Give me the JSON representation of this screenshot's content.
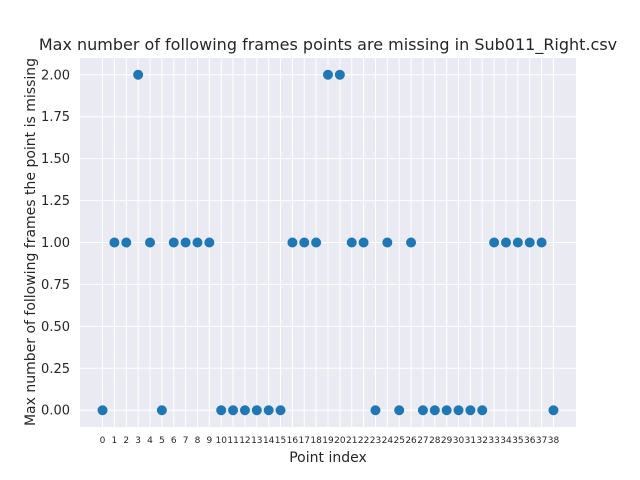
{
  "chart_data": {
    "type": "scatter",
    "title": "Max number of following frames points are missing in Sub011_Right.csv",
    "xlabel": "Point index",
    "ylabel": "Max number of following frames the point is missing",
    "x": [
      0,
      1,
      2,
      3,
      4,
      5,
      6,
      7,
      8,
      9,
      10,
      11,
      12,
      13,
      14,
      15,
      16,
      17,
      18,
      19,
      20,
      21,
      22,
      23,
      24,
      25,
      26,
      27,
      28,
      29,
      30,
      31,
      32,
      33,
      34,
      35,
      36,
      37,
      38
    ],
    "y": [
      0,
      1,
      1,
      2,
      1,
      0,
      1,
      1,
      1,
      1,
      0,
      0,
      0,
      0,
      0,
      0,
      1,
      1,
      1,
      2,
      2,
      1,
      1,
      0,
      1,
      0,
      1,
      0,
      0,
      0,
      0,
      0,
      0,
      1,
      1,
      1,
      1,
      1,
      0
    ],
    "xticks": [
      "0",
      "1",
      "2",
      "3",
      "4",
      "5",
      "6",
      "7",
      "8",
      "9",
      "10",
      "11",
      "12",
      "13",
      "14",
      "15",
      "16",
      "17",
      "18",
      "19",
      "20",
      "21",
      "22",
      "23",
      "24",
      "25",
      "26",
      "27",
      "28",
      "29",
      "30",
      "31",
      "32",
      "33",
      "34",
      "35",
      "36",
      "37",
      "38"
    ],
    "yticks": [
      "0.00",
      "0.25",
      "0.50",
      "0.75",
      "1.00",
      "1.25",
      "1.50",
      "1.75",
      "2.00"
    ],
    "ylim": [
      -0.1,
      2.1
    ],
    "xlim": [
      -1.9,
      39.9
    ],
    "grid": true,
    "colors": {
      "marker": "#1f77b4",
      "background": "#eaeaf2",
      "grid": "#ffffff"
    }
  }
}
